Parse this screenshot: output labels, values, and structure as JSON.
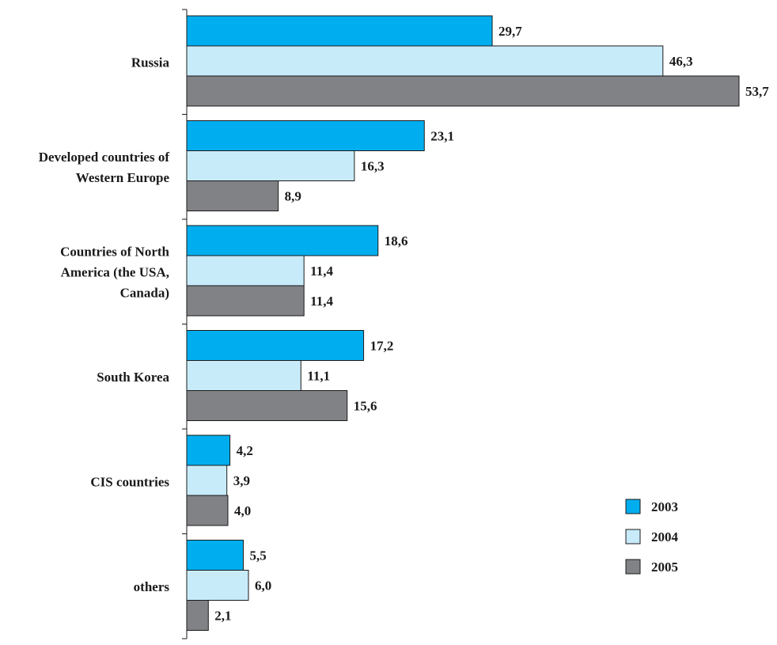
{
  "chart_data": {
    "type": "bar",
    "orientation": "horizontal",
    "categories": [
      "Russia",
      "Developed countries of Western Europe",
      "Countries of North America (the USA, Canada)",
      "South Korea",
      "CIS countries",
      "others"
    ],
    "category_label_lines": [
      [
        "Russia"
      ],
      [
        "Developed countries of",
        "Western Europe"
      ],
      [
        "Countries of North",
        "America (the USA,",
        "Canada)"
      ],
      [
        "South Korea"
      ],
      [
        "CIS countries"
      ],
      [
        "others"
      ]
    ],
    "series": [
      {
        "name": "2003",
        "color": "#00aeef",
        "values": [
          29.7,
          23.1,
          18.6,
          17.2,
          4.2,
          5.5
        ],
        "labels": [
          "29,7",
          "23,1",
          "18,6",
          "17,2",
          "4,2",
          "5,5"
        ]
      },
      {
        "name": "2004",
        "color": "#c8ebfa",
        "values": [
          46.3,
          16.3,
          11.4,
          11.1,
          3.9,
          6.0
        ],
        "labels": [
          "46,3",
          "16,3",
          "11,4",
          "11,1",
          "3,9",
          "6,0"
        ]
      },
      {
        "name": "2005",
        "color": "#808285",
        "values": [
          53.7,
          8.9,
          11.4,
          15.6,
          4.0,
          2.1
        ],
        "labels": [
          "53,7",
          "8,9",
          "11,4",
          "15,6",
          "4,0",
          "2,1"
        ]
      }
    ],
    "xlim": [
      0,
      53.7
    ],
    "grid": false,
    "legend_position": "bottom-right"
  }
}
